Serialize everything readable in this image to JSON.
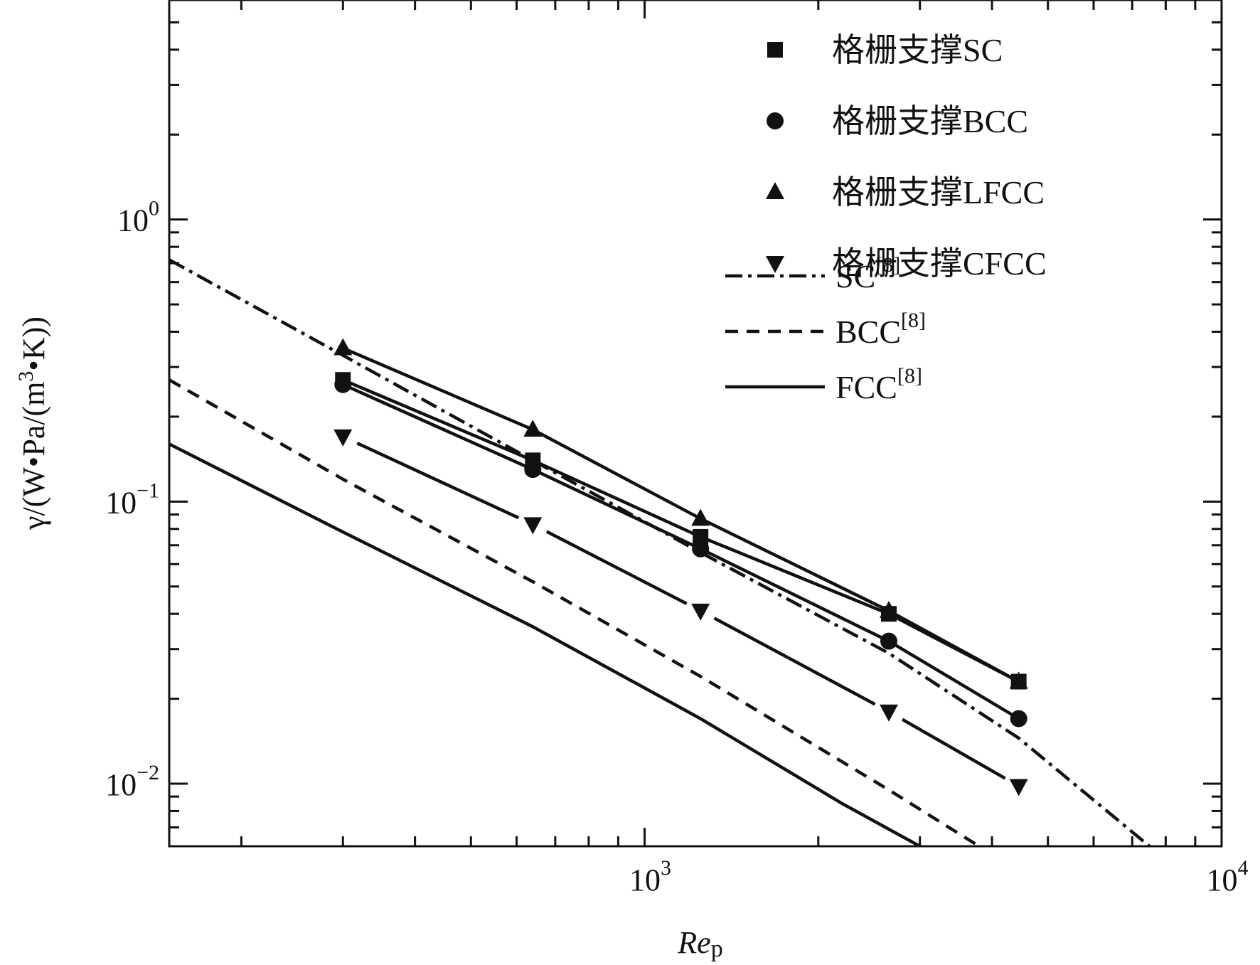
{
  "chart_data": {
    "type": "line",
    "x_scale": "log",
    "y_scale": "log",
    "xlim": [
      150,
      10000
    ],
    "ylim": [
      0.006,
      6
    ],
    "grid": false,
    "legend_position": "top-right",
    "xlabel": {
      "main": "Re",
      "sub": "p"
    },
    "ylabel": {
      "pre": "γ/(W•Pa/(m",
      "sup": "3",
      "post": "•K))"
    },
    "x_ticks": [
      {
        "value": 1000,
        "base": "10",
        "exp": "3"
      },
      {
        "value": 10000,
        "base": "10",
        "exp": "4"
      }
    ],
    "y_ticks": [
      {
        "value": 1,
        "base": "10",
        "exp": "0"
      },
      {
        "value": 0.1,
        "base": "10",
        "exp": "−1"
      },
      {
        "value": 0.01,
        "base": "10",
        "exp": "−2"
      }
    ],
    "series": [
      {
        "name": "格栅支撑SC",
        "marker": "square",
        "line": "solid",
        "x": [
          300,
          640,
          1250,
          2650,
          4450
        ],
        "y": [
          0.27,
          0.14,
          0.075,
          0.04,
          0.023
        ]
      },
      {
        "name": "格栅支撑BCC",
        "marker": "circle",
        "line": "solid",
        "x": [
          300,
          640,
          1250,
          2650,
          4450
        ],
        "y": [
          0.26,
          0.13,
          0.068,
          0.032,
          0.017
        ]
      },
      {
        "name": "格栅支撑LFCC",
        "marker": "triangle-up",
        "line": "solid",
        "x": [
          300,
          640,
          1250,
          2650,
          4450
        ],
        "y": [
          0.35,
          0.18,
          0.087,
          0.041,
          0.023
        ]
      },
      {
        "name": "格栅支撑CFCC",
        "marker": "triangle-down",
        "line": "solid-gapped",
        "x": [
          300,
          640,
          1250,
          2650,
          4450
        ],
        "y": [
          0.17,
          0.083,
          0.041,
          0.018,
          0.0098
        ]
      }
    ],
    "reference_curves": [
      {
        "name": "SC",
        "ref": "[8]",
        "line": "dashdot",
        "x": [
          150,
          300,
          640,
          1250,
          2650,
          4450,
          7500
        ],
        "y": [
          0.72,
          0.33,
          0.14,
          0.066,
          0.029,
          0.0145,
          0.006
        ]
      },
      {
        "name": "BCC",
        "ref": "[8]",
        "line": "dashed",
        "x": [
          150,
          300,
          640,
          1250,
          2650,
          3800
        ],
        "y": [
          0.27,
          0.12,
          0.052,
          0.024,
          0.0095,
          0.006
        ]
      },
      {
        "name": "FCC",
        "ref": "[8]",
        "line": "solid",
        "x": [
          150,
          300,
          640,
          1250,
          2200,
          3000
        ],
        "y": [
          0.16,
          0.078,
          0.036,
          0.017,
          0.0085,
          0.006
        ]
      }
    ]
  }
}
